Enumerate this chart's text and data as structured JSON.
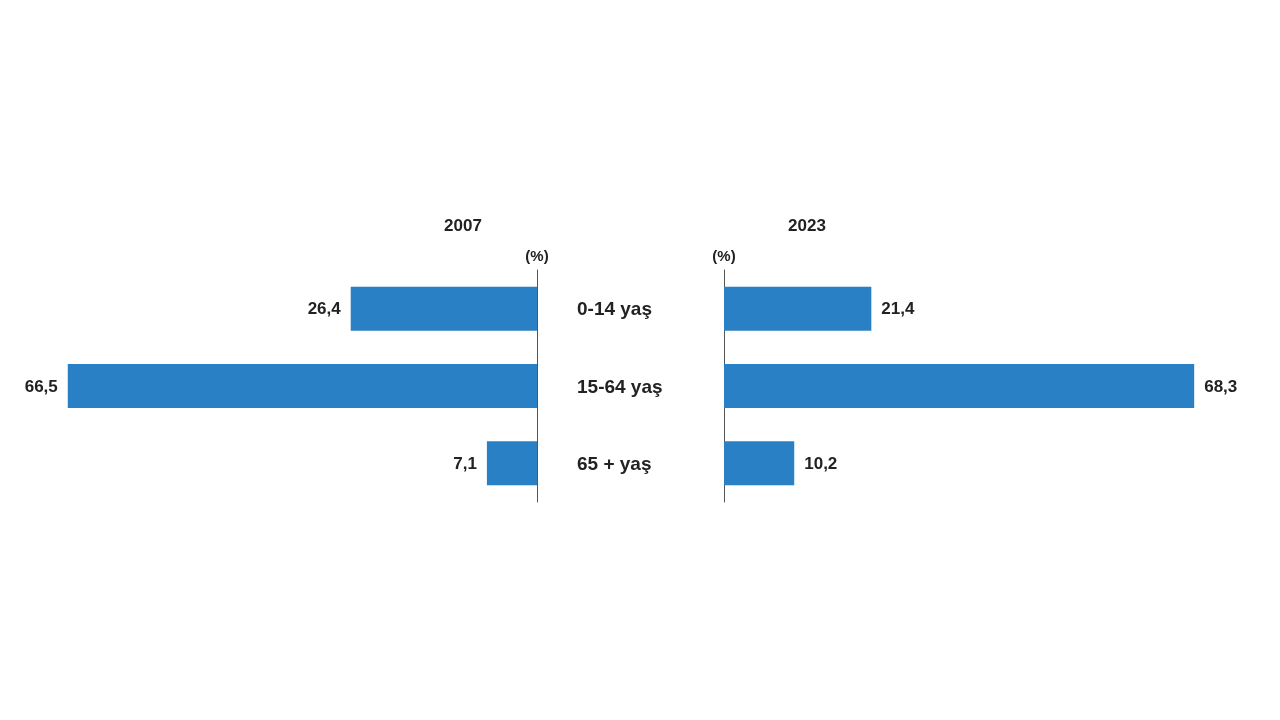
{
  "chart_data": [
    {
      "type": "bar",
      "orientation": "horizontal",
      "title": "2007",
      "xlabel": "(%)",
      "categories": [
        "0-14 yaş",
        "15-64 yaş",
        "65 + yaş"
      ],
      "values": [
        26.4,
        66.5,
        7.1
      ],
      "value_labels": [
        "26,4",
        "66,5",
        "7,1"
      ],
      "color": "#2a80c5",
      "tick_labels": "y"
    },
    {
      "type": "bar",
      "orientation": "horizontal",
      "title": "2023",
      "xlabel": "(%)",
      "categories": [
        null,
        null,
        null
      ],
      "values": [
        21.4,
        68.3,
        10.2
      ],
      "value_labels": [
        "21,4",
        "68,3",
        "10,2"
      ],
      "color": "#2a80c5",
      "tick_labels": false
    }
  ]
}
